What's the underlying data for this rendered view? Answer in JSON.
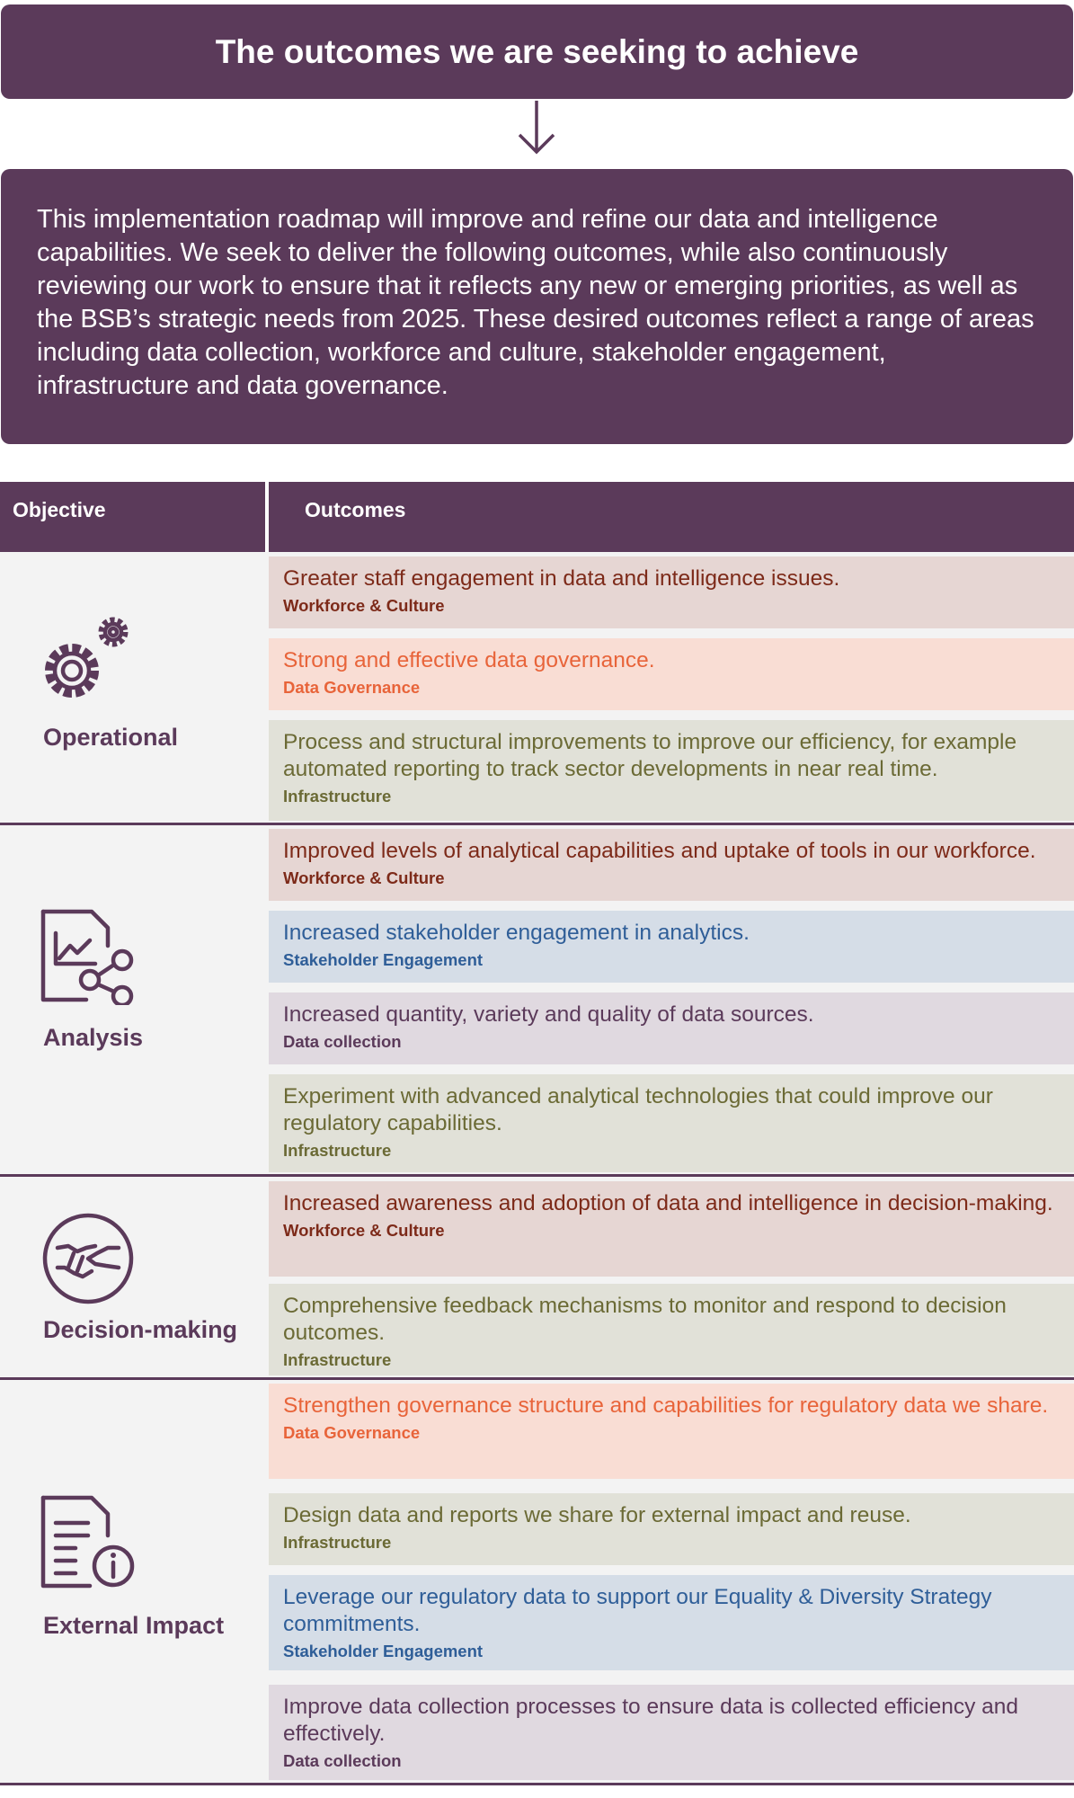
{
  "banner": {
    "title": "The outcomes we are seeking to achieve"
  },
  "intro": {
    "text": "This implementation roadmap will improve and refine our data and intelligence capabilities. We seek to deliver the following outcomes, while also continuously reviewing our work to ensure that it reflects any new or emerging priorities, as well as the BSB’s strategic needs from 2025. These desired outcomes reflect a range of areas including data collection, workforce and culture, stakeholder engagement, infrastructure and data governance."
  },
  "table": {
    "col_objective": "Objective",
    "col_outcomes": "Outcomes"
  },
  "colors": {
    "brand_purple": "#5b3a5a",
    "workforce_culture": "#7d2a19",
    "data_governance": "#e8643a",
    "infrastructure": "#6b6a35",
    "stakeholder_engagement": "#2f5e98",
    "data_collection": "#5b3a5a"
  },
  "objectives": [
    {
      "label": "Operational",
      "icon": "gears-icon",
      "outcomes": [
        {
          "text": "Greater staff engagement in data and intelligence issues.",
          "category": "Workforce & Culture"
        },
        {
          "text": "Strong and effective data governance.",
          "category": "Data Governance"
        },
        {
          "text": "Process and structural improvements to improve our efficiency, for example automated reporting to track sector developments in near real time.",
          "category": "Infrastructure"
        }
      ]
    },
    {
      "label": "Analysis",
      "icon": "chart-document-share-icon",
      "outcomes": [
        {
          "text": "Improved levels of analytical capabilities and uptake of tools in our workforce.",
          "category": "Workforce & Culture"
        },
        {
          "text": "Increased stakeholder engagement in analytics.",
          "category": "Stakeholder Engagement"
        },
        {
          "text": "Increased quantity, variety and quality of data sources.",
          "category": "Data collection"
        },
        {
          "text": "Experiment with advanced analytical technologies that could improve our regulatory capabilities.",
          "category": "Infrastructure"
        }
      ]
    },
    {
      "label": "Decision-making",
      "icon": "handshake-icon",
      "outcomes": [
        {
          "text": "Increased awareness and adoption of data and intelligence in decision-making.",
          "category": "Workforce & Culture"
        },
        {
          "text": "Comprehensive feedback mechanisms to monitor and respond to decision outcomes.",
          "category": "Infrastructure"
        }
      ]
    },
    {
      "label": "External Impact",
      "icon": "document-info-icon",
      "outcomes": [
        {
          "text": "Strengthen governance structure and capabilities for regulatory data we share.",
          "category": "Data Governance"
        },
        {
          "text": "Design data and reports we share for external impact and reuse.",
          "category": "Infrastructure"
        },
        {
          "text": "Leverage our regulatory data to support our Equality & Diversity Strategy commitments.",
          "category": "Stakeholder Engagement"
        },
        {
          "text": "Improve data collection processes to ensure data is collected efficiency and effectively.",
          "category": "Data collection"
        }
      ]
    }
  ]
}
